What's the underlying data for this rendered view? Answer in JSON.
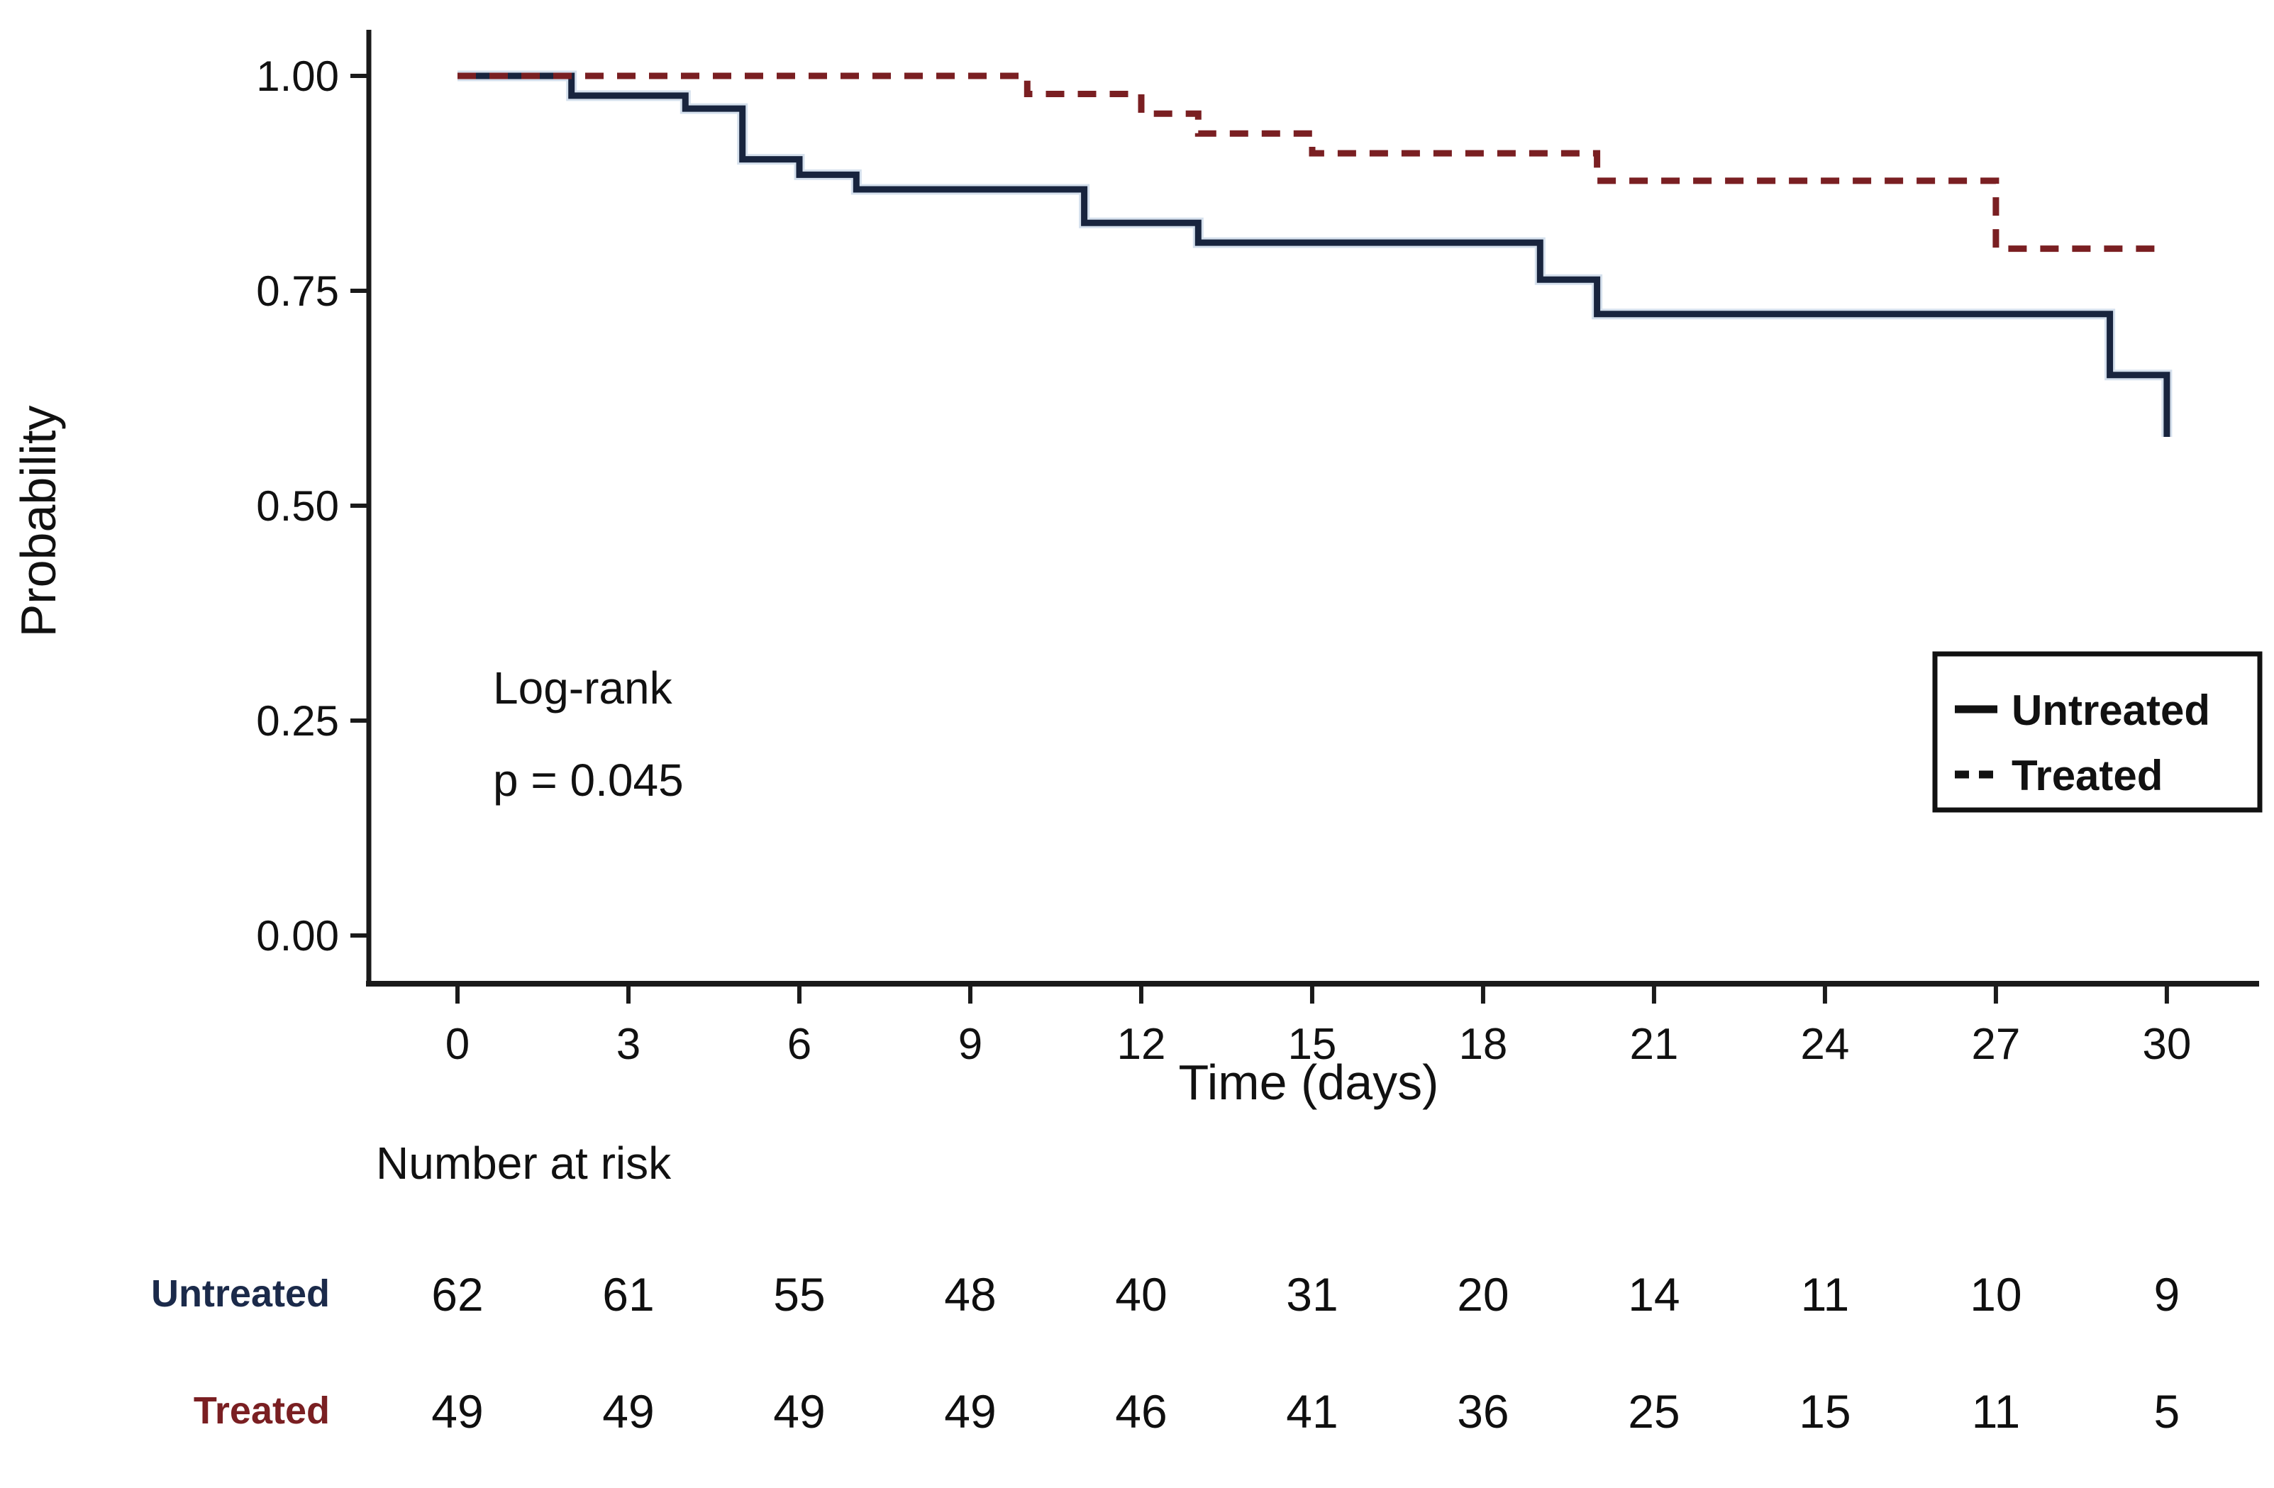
{
  "chart_data": {
    "type": "line",
    "subtype": "kaplan-meier-step-curve",
    "title": "",
    "xlabel": "Time (days)",
    "ylabel": "Probability",
    "xlim": [
      0,
      30
    ],
    "ylim": [
      0.0,
      1.0
    ],
    "grid": false,
    "xticks": [
      0,
      3,
      6,
      9,
      12,
      15,
      18,
      21,
      24,
      27,
      30
    ],
    "yticks": [
      {
        "value": 0.0,
        "label": "0.00"
      },
      {
        "value": 0.25,
        "label": "0.25"
      },
      {
        "value": 0.5,
        "label": "0.50"
      },
      {
        "value": 0.75,
        "label": "0.75"
      },
      {
        "value": 1.0,
        "label": "1.00"
      }
    ],
    "axis_color": "#1a1a1a",
    "text_color": "#111111",
    "annotation": {
      "line1": "Log-rank",
      "line2": "p = 0.045"
    },
    "legend": {
      "position": "middle-right",
      "border_color": "#111111",
      "entries": [
        {
          "label": "Untreated",
          "style": "solid"
        },
        {
          "label": "Treated",
          "style": "dashed"
        }
      ]
    },
    "series": [
      {
        "name": "Untreated",
        "style": "solid",
        "color": "#18243e",
        "halo_color": "#b3c6de",
        "steps": [
          [
            0,
            1.0
          ],
          [
            2,
            1.0
          ],
          [
            2,
            0.977
          ],
          [
            4,
            0.977
          ],
          [
            4,
            0.962
          ],
          [
            5,
            0.962
          ],
          [
            5,
            0.903
          ],
          [
            6,
            0.903
          ],
          [
            6,
            0.885
          ],
          [
            7,
            0.885
          ],
          [
            7,
            0.868
          ],
          [
            11,
            0.868
          ],
          [
            11,
            0.829
          ],
          [
            13,
            0.829
          ],
          [
            13,
            0.806
          ],
          [
            19,
            0.806
          ],
          [
            19,
            0.763
          ],
          [
            20,
            0.763
          ],
          [
            20,
            0.723
          ],
          [
            29,
            0.723
          ],
          [
            29,
            0.652
          ],
          [
            30,
            0.652
          ],
          [
            30,
            0.58
          ]
        ]
      },
      {
        "name": "Treated",
        "style": "dashed",
        "color": "#7a1f22",
        "steps": [
          [
            0,
            1.0
          ],
          [
            10,
            1.0
          ],
          [
            10,
            0.979
          ],
          [
            12,
            0.979
          ],
          [
            12,
            0.956
          ],
          [
            13,
            0.956
          ],
          [
            13,
            0.933
          ],
          [
            15,
            0.933
          ],
          [
            15,
            0.91
          ],
          [
            20,
            0.91
          ],
          [
            20,
            0.878
          ],
          [
            27,
            0.878
          ],
          [
            27,
            0.799
          ],
          [
            30,
            0.799
          ]
        ]
      }
    ],
    "risk_table": {
      "title": "Number at risk",
      "times": [
        0,
        3,
        6,
        9,
        12,
        15,
        18,
        21,
        24,
        27,
        30
      ],
      "rows": [
        {
          "label": "Untreated",
          "label_color": "#1b2a4a",
          "values": [
            62,
            61,
            55,
            48,
            40,
            31,
            20,
            14,
            11,
            10,
            9
          ]
        },
        {
          "label": "Treated",
          "label_color": "#7a1f22",
          "values": [
            49,
            49,
            49,
            49,
            46,
            41,
            36,
            25,
            15,
            11,
            5
          ]
        }
      ]
    }
  }
}
